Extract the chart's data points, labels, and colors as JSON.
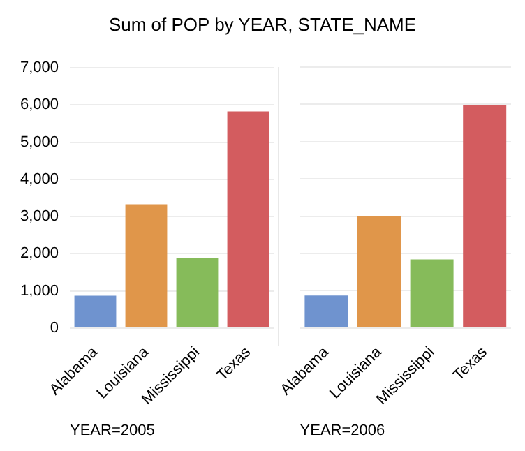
{
  "chart_data": [
    {
      "type": "bar",
      "title": "Sum of POP by YEAR, STATE_NAME",
      "xlabel": "YEAR=2005",
      "categories": [
        "Alabama",
        "Louisiana",
        "Mississippi",
        "Texas"
      ],
      "values": [
        870,
        3330,
        1880,
        5830
      ],
      "colors": [
        "#6f93cf",
        "#e0964a",
        "#86bb5a",
        "#d35c5f"
      ],
      "ylim": [
        0,
        7000
      ],
      "yticks": [
        {
          "value": 0,
          "label": "0"
        },
        {
          "value": 1000,
          "label": "1,000"
        },
        {
          "value": 2000,
          "label": "2,000"
        },
        {
          "value": 3000,
          "label": "3,000"
        },
        {
          "value": 4000,
          "label": "4,000"
        },
        {
          "value": 5000,
          "label": "5,000"
        },
        {
          "value": 6000,
          "label": "6,000"
        },
        {
          "value": 7000,
          "label": "7,000"
        }
      ],
      "grid": "y"
    },
    {
      "type": "bar",
      "xlabel": "YEAR=2006",
      "categories": [
        "Alabama",
        "Louisiana",
        "Mississippi",
        "Texas"
      ],
      "values": [
        870,
        2990,
        1840,
        5980
      ],
      "colors": [
        "#6f93cf",
        "#e0964a",
        "#86bb5a",
        "#d35c5f"
      ],
      "ylim": [
        0,
        7000
      ],
      "yticks": [
        0,
        1000,
        2000,
        3000,
        4000,
        5000,
        6000,
        7000
      ],
      "grid": "y",
      "tick_labels": "x"
    }
  ]
}
